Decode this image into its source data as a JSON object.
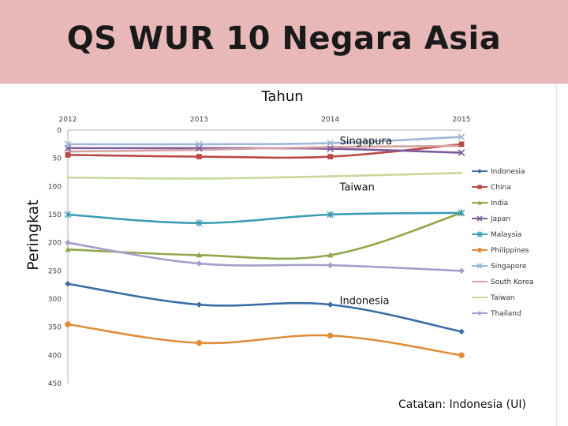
{
  "title": "QS WUR 10 Negara Asia",
  "note": "Catatan: Indonesia (UI)",
  "chart_data": {
    "type": "line",
    "xlabel": "Tahun",
    "ylabel": "Peringkat",
    "x": [
      "2012",
      "2013",
      "2014",
      "2015"
    ],
    "ylim": [
      0,
      450
    ],
    "y_ticks": [
      0,
      50,
      100,
      150,
      200,
      250,
      300,
      350,
      400,
      450
    ],
    "y_inverted": true,
    "x_axis_position": "top",
    "grid": false,
    "legend_position": "right",
    "series": [
      {
        "name": "Indonesia",
        "color": "#3a6ea5",
        "marker": "diamond",
        "values": [
          273,
          310,
          310,
          358
        ]
      },
      {
        "name": "China",
        "color": "#b94a48",
        "marker": "square",
        "values": [
          44,
          47,
          47,
          25
        ]
      },
      {
        "name": "India",
        "color": "#8fa84a",
        "marker": "triangle",
        "values": [
          212,
          222,
          222,
          147
        ]
      },
      {
        "name": "Japan",
        "color": "#7a5c9e",
        "marker": "x",
        "values": [
          32,
          32,
          33,
          40
        ]
      },
      {
        "name": "Malaysia",
        "color": "#3c9db4",
        "marker": "star",
        "values": [
          150,
          165,
          150,
          147
        ]
      },
      {
        "name": "Philippines",
        "color": "#e08e3c",
        "marker": "circle",
        "values": [
          345,
          378,
          365,
          400
        ]
      },
      {
        "name": "Singapore",
        "color": "#9fb6d8",
        "marker": "x",
        "values": [
          25,
          25,
          23,
          12
        ]
      },
      {
        "name": "South Korea",
        "color": "#d9a3a6",
        "marker": "none",
        "values": [
          38,
          35,
          30,
          28
        ]
      },
      {
        "name": "Taiwan",
        "color": "#c6d89a",
        "marker": "none",
        "values": [
          84,
          86,
          82,
          76
        ]
      },
      {
        "name": "Thailand",
        "color": "#a99cc9",
        "marker": "diamond",
        "values": [
          200,
          237,
          240,
          250
        ]
      }
    ],
    "annotations": [
      {
        "text": "Singapura",
        "x": "2014",
        "y": 18
      },
      {
        "text": "Taiwan",
        "x": "2014",
        "y": 100
      },
      {
        "text": "Indonesia",
        "x": "2014",
        "y": 302
      }
    ]
  }
}
